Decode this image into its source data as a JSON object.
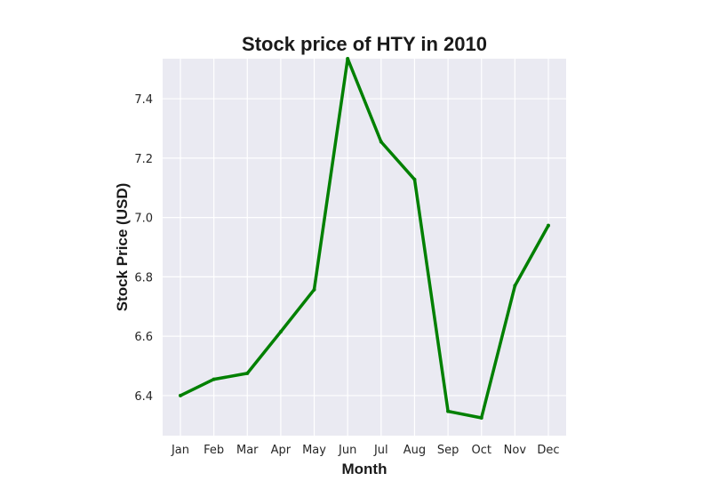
{
  "chart_data": {
    "type": "line",
    "title": "Stock price of HTY in 2010",
    "xlabel": "Month",
    "ylabel": "Stock Price (USD)",
    "categories": [
      "Jan",
      "Feb",
      "Mar",
      "Apr",
      "May",
      "Jun",
      "Jul",
      "Aug",
      "Sep",
      "Oct",
      "Nov",
      "Dec"
    ],
    "series": [
      {
        "values": [
          6.4,
          6.455,
          6.475,
          6.615,
          6.757,
          7.535,
          7.255,
          7.128,
          6.347,
          6.325,
          6.77,
          6.973
        ],
        "color": "#008000"
      }
    ],
    "yticks": [
      "6.4",
      "6.6",
      "6.8",
      "7.0",
      "7.2",
      "7.4"
    ],
    "ylim": [
      6.265,
      7.535
    ],
    "grid": true,
    "background": "#eaeaf2",
    "legend": "none"
  }
}
